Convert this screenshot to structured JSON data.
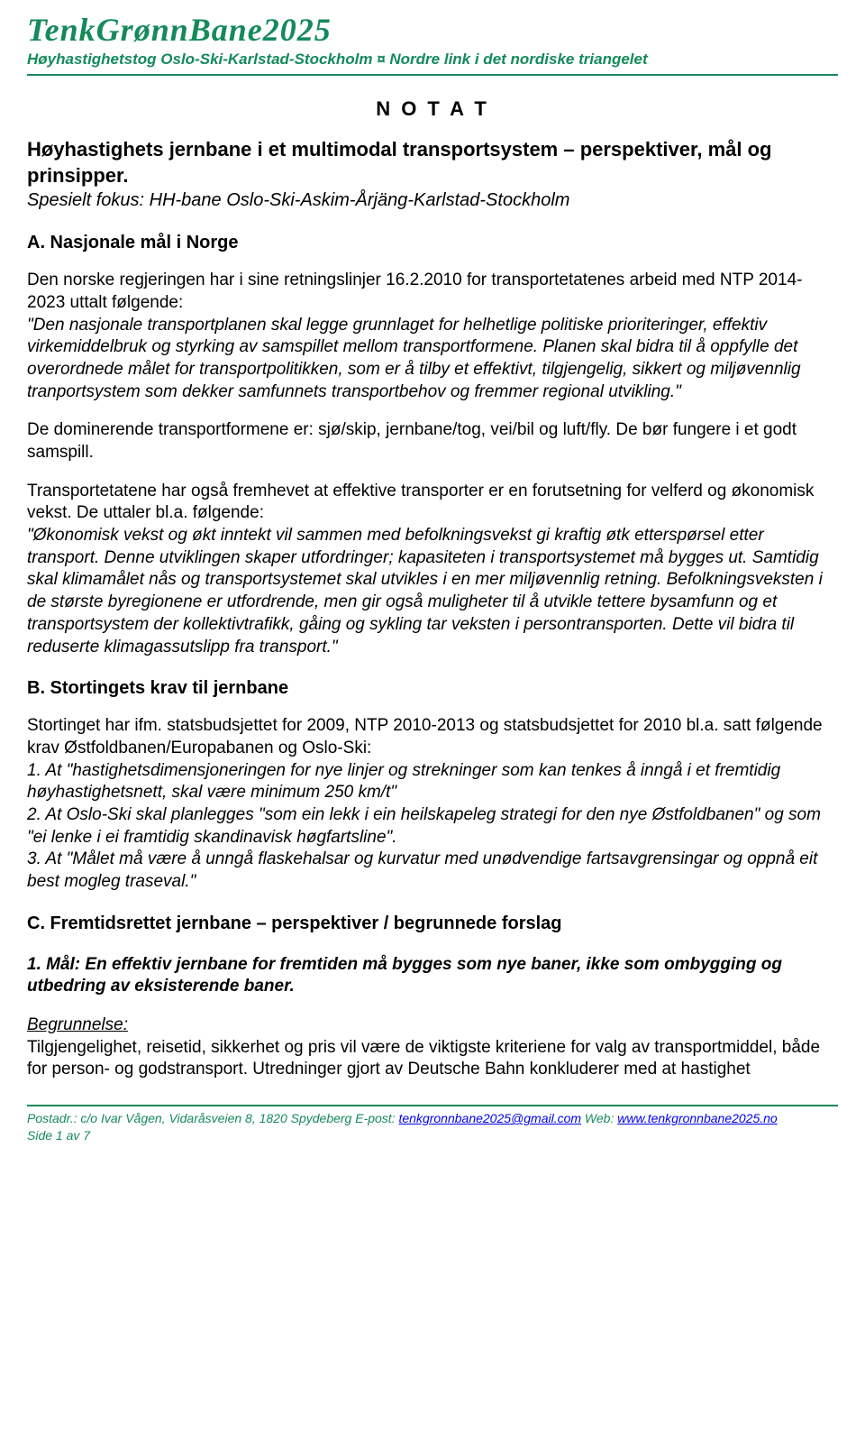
{
  "header": {
    "title": "TenkGrønnBane2025",
    "subtitle": "Høyhastighetstog Oslo-Ski-Karlstad-Stockholm  ¤  Nordre link i det nordiske triangelet",
    "rule_color": "#148a5a",
    "title_color": "#148a5a",
    "title_fontsize": 36,
    "subtitle_fontsize": 17
  },
  "notat": "N O T A T",
  "doc": {
    "title": "Høyhastighets jernbane i et multimodal transportsystem – perspektiver, mål og prinsipper.",
    "subtitle": "Spesielt fokus: HH-bane Oslo-Ski-Askim-Årjäng-Karlstad-Stockholm"
  },
  "sectionA": {
    "heading": "A. Nasjonale mål i Norge",
    "p1_lead": "Den norske regjeringen har i sine retningslinjer 16.2.2010 for transportetatenes arbeid med NTP 2014-2023 uttalt følgende:",
    "p1_quote": "\"Den nasjonale transportplanen skal legge grunnlaget for helhetlige politiske prioriteringer, effektiv virkemiddelbruk og styrking av samspillet mellom transportformene. Planen skal bidra til å oppfylle det overordnede målet for transportpolitikken, som er å tilby et effektivt, tilgjengelig, sikkert og miljøvennlig tranportsystem som dekker samfunnets transportbehov og fremmer regional utvikling.\"",
    "p2": "De dominerende transportformene er: sjø/skip, jernbane/tog, vei/bil og luft/fly. De bør fungere i et godt samspill.",
    "p3_lead": "Transportetatene har også fremhevet at effektive transporter er en forutsetning for velferd og økonomisk vekst. De uttaler bl.a. følgende:",
    "p3_quote": "\"Økonomisk vekst og økt inntekt vil sammen med befolkningsvekst gi kraftig øtk etterspørsel etter transport. Denne utviklingen skaper utfordringer; kapasiteten i transportsystemet må bygges ut. Samtidig skal klimamålet nås og transportsystemet skal utvikles i en mer miljøvennlig retning. Befolkningsveksten i de største byregionene er utfordrende, men gir også muligheter til å utvikle tettere bysamfunn og et transportsystem der kollektivtrafikk, gåing og sykling tar veksten i persontransporten. Dette vil bidra til reduserte klimagassutslipp fra transport.\""
  },
  "sectionB": {
    "heading": "B. Stortingets krav til jernbane",
    "p1_lead": "Stortinget har ifm. statsbudsjettet for 2009, NTP 2010-2013 og statsbudsjettet for 2010 bl.a. satt følgende krav Østfoldbanen/Europabanen og Oslo-Ski:",
    "item1_pre": "1. At ",
    "item1_quote": "\"hastighetsdimensjoneringen for nye linjer og strekninger som kan tenkes å inngå i et fremtidig høyhastighetsnett, skal være minimum 250 km/t\"",
    "item2_pre": "2. At Oslo-Ski skal planlegges ",
    "item2_quote1": "\"som ein lekk i ein heilskapeleg strategi for den nye Østfoldbanen\"",
    "item2_mid": " og som ",
    "item2_quote2": "\"ei lenke i ei framtidig skandinavisk høgfartsline\"",
    "item2_end": ".",
    "item3_pre": "3. At ",
    "item3_quote": "\"Målet må være å unngå flaskehalsar og kurvatur med unødvendige fartsavgrensingar og oppnå eit best mogleg traseval.\""
  },
  "sectionC": {
    "heading": "C. Fremtidsrettet jernbane – perspektiver / begrunnede forslag",
    "goal1": "1. Mål: En effektiv jernbane for fremtiden må bygges som nye baner, ikke som ombygging og utbedring av eksisterende baner.",
    "rationale_label": "Begrunnelse:",
    "rationale_text": "Tilgjengelighet, reisetid, sikkerhet og pris vil være de viktigste kriteriene for valg av transportmiddel, både for person- og godstransport. Utredninger gjort av Deutsche Bahn konkluderer med at hastighet"
  },
  "footer": {
    "line1_pre": "Postadr.: c/o Ivar Vågen, Vidaråsveien 8, 1820 Spydeberg  E-post: ",
    "email": "tenkgronnbane2025@gmail.com",
    "line1_mid": "  Web: ",
    "web": "www.tenkgronnbane2025.no",
    "page": "Side 1 av 7",
    "text_color": "#148a5a",
    "link_color": "#0000ee",
    "fontsize": 14
  },
  "colors": {
    "background": "#ffffff",
    "text": "#000000",
    "accent": "#148a5a"
  }
}
